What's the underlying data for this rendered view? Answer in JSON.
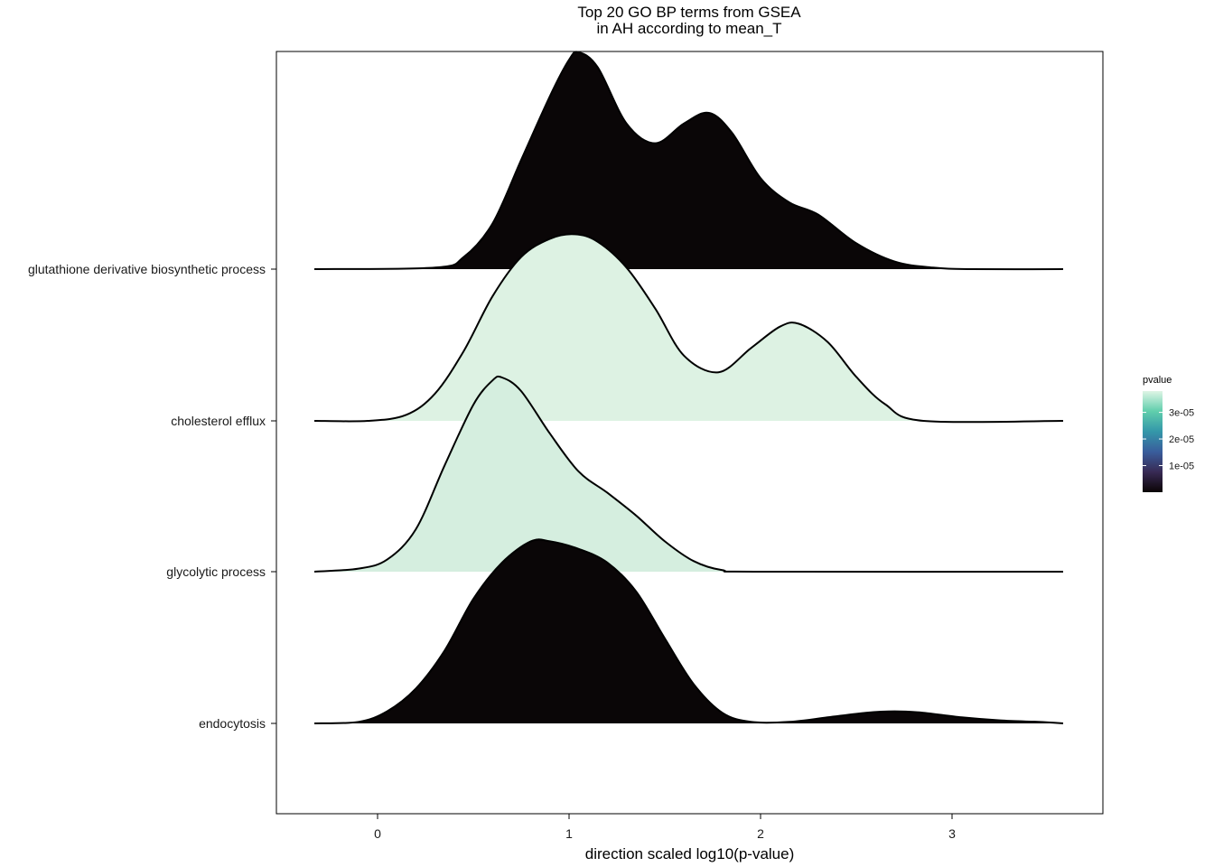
{
  "chart_data": {
    "type": "ridgeline",
    "title": "Top 20 GO BP terms from GSEA",
    "subtitle": "in AH according to mean_T",
    "xlabel": "direction scaled log10(p-value)",
    "ylabel": "",
    "xlim": [
      -0.52,
      3.78
    ],
    "x_ticks": [
      0,
      1,
      2,
      3
    ],
    "grid": false,
    "legend": {
      "title": "pvalue",
      "position": "right",
      "range": [
        0,
        3.8e-05
      ],
      "ticks": [
        {
          "value": 1e-05,
          "label": "1e-05"
        },
        {
          "value": 2e-05,
          "label": "2e-05"
        },
        {
          "value": 3e-05,
          "label": "3e-05"
        }
      ],
      "colors": [
        "#0b0405",
        "#382a54",
        "#395d9c",
        "#3497a9",
        "#60ceac",
        "#def5e5"
      ]
    },
    "series": [
      {
        "name": "glutathione derivative biosynthetic process",
        "pvalue": 0.0,
        "fill": "#0a0607",
        "density": {
          "x": [
            -0.33,
            0.3,
            0.45,
            0.6,
            0.75,
            0.9,
            1.0,
            1.05,
            1.15,
            1.3,
            1.45,
            1.6,
            1.73,
            1.85,
            2.0,
            2.15,
            2.3,
            2.5,
            2.7,
            2.9,
            3.1,
            3.58
          ],
          "y": [
            0,
            0.01,
            0.08,
            0.3,
            0.72,
            1.14,
            1.38,
            1.43,
            1.33,
            0.96,
            0.83,
            0.96,
            1.03,
            0.9,
            0.6,
            0.44,
            0.36,
            0.17,
            0.05,
            0.01,
            0,
            0
          ]
        }
      },
      {
        "name": "cholesterol efflux",
        "pvalue": 3.7e-05,
        "fill": "#ddf2e3",
        "density": {
          "x": [
            -0.33,
            -0.05,
            0.15,
            0.3,
            0.45,
            0.6,
            0.75,
            0.9,
            1.03,
            1.15,
            1.3,
            1.45,
            1.6,
            1.78,
            1.95,
            2.1,
            2.2,
            2.35,
            2.5,
            2.65,
            2.85,
            3.58
          ],
          "y": [
            0,
            0,
            0.04,
            0.18,
            0.46,
            0.82,
            1.08,
            1.2,
            1.23,
            1.18,
            1.01,
            0.74,
            0.43,
            0.32,
            0.48,
            0.62,
            0.64,
            0.52,
            0.29,
            0.11,
            0,
            0
          ]
        }
      },
      {
        "name": "glycolytic process",
        "pvalue": 3.6e-05,
        "fill": "#d5eedf",
        "density": {
          "x": [
            -0.33,
            -0.1,
            0.05,
            0.2,
            0.35,
            0.5,
            0.6,
            0.65,
            0.75,
            0.9,
            1.05,
            1.2,
            1.35,
            1.5,
            1.65,
            1.8,
            2.0,
            3.58
          ],
          "y": [
            0,
            0.02,
            0.08,
            0.28,
            0.7,
            1.1,
            1.26,
            1.28,
            1.19,
            0.91,
            0.66,
            0.52,
            0.37,
            0.2,
            0.07,
            0.01,
            0,
            0
          ]
        }
      },
      {
        "name": "endocytosis",
        "pvalue": 0.0,
        "fill": "#0a0607",
        "density": {
          "x": [
            -0.33,
            -0.1,
            0.05,
            0.2,
            0.35,
            0.5,
            0.65,
            0.8,
            0.9,
            1.05,
            1.2,
            1.35,
            1.5,
            1.65,
            1.8,
            1.95,
            2.15,
            2.35,
            2.55,
            2.7,
            2.85,
            3.05,
            3.25,
            3.45,
            3.58
          ],
          "y": [
            0,
            0.01,
            0.08,
            0.23,
            0.48,
            0.82,
            1.06,
            1.2,
            1.2,
            1.15,
            1.06,
            0.87,
            0.56,
            0.26,
            0.07,
            0.01,
            0.01,
            0.04,
            0.07,
            0.08,
            0.07,
            0.04,
            0.02,
            0.01,
            0
          ]
        }
      }
    ]
  }
}
